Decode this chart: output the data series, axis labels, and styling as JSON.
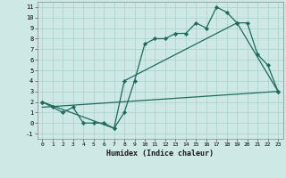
{
  "xlabel": "Humidex (Indice chaleur)",
  "background_color": "#cde8e5",
  "grid_color": "#aed4d0",
  "line_color": "#1e6b5e",
  "xlim": [
    -0.5,
    23.5
  ],
  "ylim": [
    -1.5,
    11.5
  ],
  "xticks": [
    0,
    1,
    2,
    3,
    4,
    5,
    6,
    7,
    8,
    9,
    10,
    11,
    12,
    13,
    14,
    15,
    16,
    17,
    18,
    19,
    20,
    21,
    22,
    23
  ],
  "yticks": [
    -1,
    0,
    1,
    2,
    3,
    4,
    5,
    6,
    7,
    8,
    9,
    10,
    11
  ],
  "series1_x": [
    0,
    1,
    2,
    3,
    4,
    5,
    6,
    7,
    8,
    9,
    10,
    11,
    12,
    13,
    14,
    15,
    16,
    17,
    18,
    19,
    20,
    21,
    22,
    23
  ],
  "series1_y": [
    2,
    1.5,
    1,
    1.5,
    0,
    0,
    0,
    -0.5,
    1.0,
    4.0,
    7.5,
    8,
    8,
    8.5,
    8.5,
    9.5,
    9,
    11,
    10.5,
    9.5,
    9.5,
    6.5,
    5.5,
    3
  ],
  "series2_x": [
    0,
    7,
    8,
    19,
    23
  ],
  "series2_y": [
    2,
    -0.5,
    4,
    9.5,
    3
  ],
  "series3_x": [
    0,
    23
  ],
  "series3_y": [
    1.5,
    3
  ],
  "marker": "D",
  "marker_size": 2.2,
  "linewidth": 0.9
}
